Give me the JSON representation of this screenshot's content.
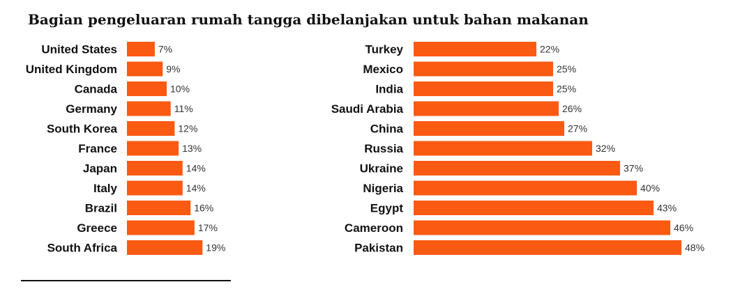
{
  "title": "Bagian pengeluaran rumah tangga dibelanjakan untuk bahan makanan",
  "colors": {
    "bar": "#fb5a12",
    "text": "#111111",
    "value_text": "#333333"
  },
  "chart_data": [
    {
      "type": "bar",
      "orientation": "horizontal",
      "categories": [
        "United States",
        "United Kingdom",
        "Canada",
        "Germany",
        "South Korea",
        "France",
        "Japan",
        "Italy",
        "Brazil",
        "Greece",
        "South Africa"
      ],
      "values": [
        7,
        9,
        10,
        11,
        12,
        13,
        14,
        14,
        16,
        17,
        19
      ],
      "value_labels": [
        "7%",
        "9%",
        "10%",
        "11%",
        "12%",
        "13%",
        "14%",
        "14%",
        "16%",
        "17%",
        "19%"
      ],
      "unit": "%",
      "xlim": [
        0,
        100
      ],
      "grid": false
    },
    {
      "type": "bar",
      "orientation": "horizontal",
      "categories": [
        "Turkey",
        "Mexico",
        "India",
        "Saudi Arabia",
        "China",
        "Russia",
        "Ukraine",
        "Nigeria",
        "Egypt",
        "Cameroon",
        "Pakistan"
      ],
      "values": [
        22,
        25,
        25,
        26,
        27,
        32,
        37,
        40,
        43,
        46,
        48
      ],
      "value_labels": [
        "22%",
        "25%",
        "25%",
        "26%",
        "27%",
        "32%",
        "37%",
        "40%",
        "43%",
        "46%",
        "48%"
      ],
      "unit": "%",
      "xlim": [
        0,
        100
      ],
      "grid": false
    }
  ]
}
